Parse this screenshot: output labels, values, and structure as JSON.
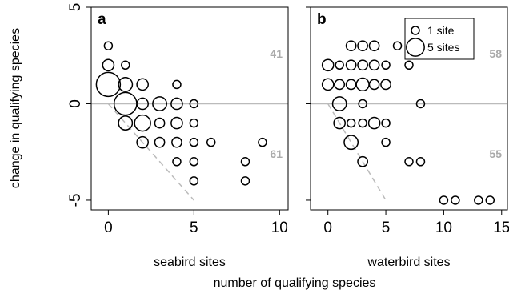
{
  "figure": {
    "ylabel": "change in qualifying species",
    "xlabel": "number of qualifying species"
  },
  "colors": {
    "marker_stroke": "#000000",
    "zero_line": "#bbbbbb",
    "diagonal": "#bbbbbb",
    "count_text": "#aaaaaa",
    "frame": "#000000"
  },
  "legend": {
    "entries": [
      {
        "label": "1 site",
        "sites": 1
      },
      {
        "label": "5 sites",
        "sites": 5
      }
    ],
    "placement": "top-right of panel b"
  },
  "chart_data": [
    {
      "type": "scatter",
      "panel_label": "a",
      "xlabel": "seabird sites",
      "ylabel": "change in qualifying species",
      "xlim": [
        -1,
        10.5
      ],
      "ylim": [
        -5.5,
        5
      ],
      "xticks": [
        0,
        5,
        10
      ],
      "xtick_labels": [
        "0",
        "5",
        "10"
      ],
      "yticks": [
        -5,
        0,
        5
      ],
      "ytick_labels": [
        "-5",
        "0",
        "5"
      ],
      "annotations": [
        {
          "text": "41",
          "x": 10,
          "y": 2.6,
          "color": "#aaaaaa"
        },
        {
          "text": "61",
          "x": 10,
          "y": -2.6,
          "color": "#aaaaaa"
        }
      ],
      "reference_lines": [
        {
          "kind": "horizontal",
          "y": 0
        },
        {
          "kind": "diagonal",
          "x": [
            0,
            5
          ],
          "y": [
            0,
            -5
          ],
          "dashed": true
        }
      ],
      "points": [
        {
          "x": 0,
          "y": 3,
          "sites": 1
        },
        {
          "x": 0,
          "y": 2,
          "sites": 2
        },
        {
          "x": 0,
          "y": 1,
          "sites": 9
        },
        {
          "x": 1,
          "y": 2,
          "sites": 1
        },
        {
          "x": 1,
          "y": 1,
          "sites": 3
        },
        {
          "x": 1,
          "y": 0,
          "sites": 8
        },
        {
          "x": 1,
          "y": -1,
          "sites": 3
        },
        {
          "x": 2,
          "y": 1,
          "sites": 2
        },
        {
          "x": 2,
          "y": 0,
          "sites": 2
        },
        {
          "x": 2,
          "y": -1,
          "sites": 4
        },
        {
          "x": 2,
          "y": -2,
          "sites": 2
        },
        {
          "x": 3,
          "y": 0,
          "sites": 3
        },
        {
          "x": 3,
          "y": -1,
          "sites": 1.5
        },
        {
          "x": 3,
          "y": -2,
          "sites": 1.5
        },
        {
          "x": 4,
          "y": 1,
          "sites": 1
        },
        {
          "x": 4,
          "y": 0,
          "sites": 2
        },
        {
          "x": 4,
          "y": -1,
          "sites": 2
        },
        {
          "x": 4,
          "y": -2,
          "sites": 1.5
        },
        {
          "x": 4,
          "y": -3,
          "sites": 1
        },
        {
          "x": 5,
          "y": 0,
          "sites": 1
        },
        {
          "x": 5,
          "y": -1,
          "sites": 1
        },
        {
          "x": 5,
          "y": -2,
          "sites": 1
        },
        {
          "x": 5,
          "y": -3,
          "sites": 1
        },
        {
          "x": 5,
          "y": -4,
          "sites": 1
        },
        {
          "x": 6,
          "y": -2,
          "sites": 1
        },
        {
          "x": 8,
          "y": -3,
          "sites": 1
        },
        {
          "x": 8,
          "y": -4,
          "sites": 1
        },
        {
          "x": 9,
          "y": -2,
          "sites": 1
        }
      ]
    },
    {
      "type": "scatter",
      "panel_label": "b",
      "xlabel": "waterbird sites",
      "ylabel": "",
      "xlim": [
        -1.5,
        15.5
      ],
      "ylim": [
        -5.5,
        5
      ],
      "xticks": [
        0,
        5,
        10,
        15
      ],
      "xtick_labels": [
        "0",
        "5",
        "10",
        "15"
      ],
      "yticks": [
        -5,
        0,
        5
      ],
      "ytick_labels": [
        "",
        "",
        ""
      ],
      "annotations": [
        {
          "text": "58",
          "x": 15,
          "y": 2.6,
          "color": "#aaaaaa"
        },
        {
          "text": "55",
          "x": 15,
          "y": -2.6,
          "color": "#aaaaaa"
        }
      ],
      "reference_lines": [
        {
          "kind": "horizontal",
          "y": 0
        },
        {
          "kind": "diagonal",
          "x": [
            0,
            5
          ],
          "y": [
            0,
            -5
          ],
          "dashed": true
        }
      ],
      "points": [
        {
          "x": 2,
          "y": 3,
          "sites": 1.5
        },
        {
          "x": 3,
          "y": 3,
          "sites": 1.5
        },
        {
          "x": 4,
          "y": 3,
          "sites": 1.5
        },
        {
          "x": 6,
          "y": 3,
          "sites": 1
        },
        {
          "x": 0,
          "y": 2,
          "sites": 2
        },
        {
          "x": 1,
          "y": 2,
          "sites": 1
        },
        {
          "x": 2,
          "y": 2,
          "sites": 1.5
        },
        {
          "x": 3,
          "y": 2,
          "sites": 1.5
        },
        {
          "x": 4,
          "y": 2,
          "sites": 1.5
        },
        {
          "x": 5,
          "y": 2,
          "sites": 1
        },
        {
          "x": 7,
          "y": 2,
          "sites": 1
        },
        {
          "x": 0,
          "y": 1,
          "sites": 2
        },
        {
          "x": 1,
          "y": 1,
          "sites": 1.5
        },
        {
          "x": 2,
          "y": 1,
          "sites": 1.5
        },
        {
          "x": 3,
          "y": 1,
          "sites": 2.5
        },
        {
          "x": 4,
          "y": 1,
          "sites": 1.5
        },
        {
          "x": 5,
          "y": 1,
          "sites": 1.5
        },
        {
          "x": 1,
          "y": 0,
          "sites": 3
        },
        {
          "x": 3,
          "y": 0,
          "sites": 1
        },
        {
          "x": 8,
          "y": 0,
          "sites": 1
        },
        {
          "x": 1,
          "y": -1,
          "sites": 2
        },
        {
          "x": 2,
          "y": -1,
          "sites": 1
        },
        {
          "x": 3,
          "y": -1,
          "sites": 1
        },
        {
          "x": 4,
          "y": -1,
          "sites": 2
        },
        {
          "x": 5,
          "y": -1,
          "sites": 1
        },
        {
          "x": 2,
          "y": -2,
          "sites": 3
        },
        {
          "x": 5,
          "y": -2,
          "sites": 1
        },
        {
          "x": 3,
          "y": -3,
          "sites": 1.5
        },
        {
          "x": 7,
          "y": -3,
          "sites": 1
        },
        {
          "x": 8,
          "y": -3,
          "sites": 1
        },
        {
          "x": 10,
          "y": -5,
          "sites": 1
        },
        {
          "x": 11,
          "y": -5,
          "sites": 1
        },
        {
          "x": 13,
          "y": -5,
          "sites": 1
        },
        {
          "x": 14,
          "y": -5,
          "sites": 1
        }
      ]
    }
  ]
}
